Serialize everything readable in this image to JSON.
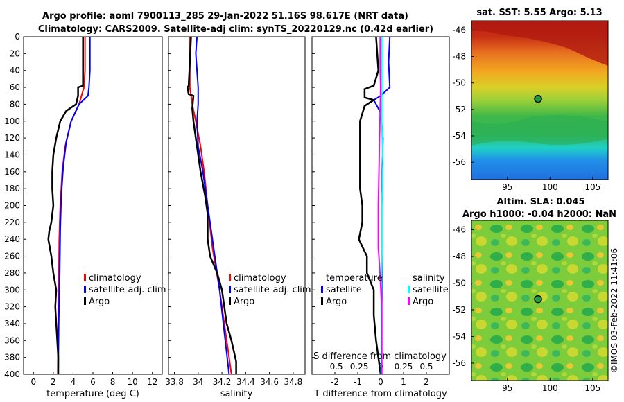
{
  "header": {
    "title_line1": "Argo profile: aoml 7900113_285 29-Jan-2022 51.16S 98.617E (NRT data)",
    "title_line2": "Climatology: CARS2009. Satellite-adj clim: synTS_20220129.nc (0.42d earlier)"
  },
  "colors": {
    "climatology": "#ff0000",
    "satellite_clim": "#0000ff",
    "argo": "#000000",
    "satellite_diff": "#00ffff",
    "argo_s_diff": "#ff00ff"
  },
  "chart_data": [
    {
      "type": "line",
      "xlabel": "temperature (deg C)",
      "ylabel": "",
      "xlim": [
        -1,
        13
      ],
      "ylim": [
        400,
        0
      ],
      "xticks": [
        "0",
        "2",
        "4",
        "6",
        "8",
        "10",
        "12"
      ],
      "yticks": [
        "0",
        "20",
        "40",
        "60",
        "80",
        "100",
        "120",
        "140",
        "160",
        "180",
        "200",
        "220",
        "240",
        "260",
        "280",
        "300",
        "320",
        "340",
        "360",
        "380",
        "400"
      ],
      "legend": [
        "climatology",
        "satellite-adj. clim",
        "Argo"
      ],
      "series": [
        {
          "name": "climatology",
          "color": "#ff0000",
          "points": [
            [
              5.2,
              0
            ],
            [
              5.2,
              40
            ],
            [
              5.1,
              60
            ],
            [
              4.6,
              80
            ],
            [
              3.8,
              100
            ],
            [
              3.2,
              130
            ],
            [
              2.9,
              160
            ],
            [
              2.7,
              200
            ],
            [
              2.6,
              240
            ],
            [
              2.55,
              300
            ],
            [
              2.5,
              350
            ],
            [
              2.45,
              400
            ]
          ]
        },
        {
          "name": "satellite-adj. clim",
          "color": "#0000ff",
          "points": [
            [
              5.7,
              0
            ],
            [
              5.7,
              40
            ],
            [
              5.6,
              60
            ],
            [
              5.5,
              70
            ],
            [
              4.6,
              80
            ],
            [
              3.8,
              100
            ],
            [
              3.3,
              125
            ],
            [
              3.0,
              155
            ],
            [
              2.8,
              190
            ],
            [
              2.7,
              230
            ],
            [
              2.65,
              280
            ],
            [
              2.55,
              340
            ],
            [
              2.5,
              400
            ]
          ]
        },
        {
          "name": "Argo",
          "color": "#000000",
          "points": [
            [
              5.0,
              0
            ],
            [
              5.0,
              30
            ],
            [
              5.0,
              58
            ],
            [
              4.5,
              60
            ],
            [
              4.5,
              70
            ],
            [
              4.3,
              80
            ],
            [
              3.3,
              88
            ],
            [
              2.7,
              100
            ],
            [
              2.3,
              120
            ],
            [
              2.0,
              140
            ],
            [
              1.9,
              160
            ],
            [
              1.9,
              180
            ],
            [
              2.0,
              200
            ],
            [
              1.8,
              220
            ],
            [
              1.6,
              230
            ],
            [
              1.5,
              240
            ],
            [
              1.8,
              260
            ],
            [
              2.0,
              280
            ],
            [
              2.3,
              300
            ],
            [
              2.2,
              320
            ],
            [
              2.3,
              340
            ],
            [
              2.4,
              360
            ],
            [
              2.5,
              380
            ],
            [
              2.5,
              400
            ]
          ]
        }
      ]
    },
    {
      "type": "line",
      "xlabel": "salinity",
      "xlim": [
        33.75,
        34.9
      ],
      "ylim": [
        400,
        0
      ],
      "xticks": [
        "33.8",
        "34",
        "34.2",
        "34.4",
        "34.6",
        "34.8"
      ],
      "legend": [
        "climatology",
        "satellite-adj. clim",
        "Argo"
      ],
      "series": [
        {
          "name": "climatology",
          "color": "#ff0000",
          "points": [
            [
              33.93,
              0
            ],
            [
              33.93,
              40
            ],
            [
              33.93,
              60
            ],
            [
              33.95,
              80
            ],
            [
              33.98,
              100
            ],
            [
              34.02,
              130
            ],
            [
              34.05,
              160
            ],
            [
              34.08,
              200
            ],
            [
              34.12,
              250
            ],
            [
              34.18,
              300
            ],
            [
              34.23,
              350
            ],
            [
              34.28,
              400
            ]
          ]
        },
        {
          "name": "satellite-adj. clim",
          "color": "#0000ff",
          "points": [
            [
              33.99,
              0
            ],
            [
              33.98,
              20
            ],
            [
              33.99,
              40
            ],
            [
              34.0,
              60
            ],
            [
              34.0,
              80
            ],
            [
              33.99,
              100
            ],
            [
              34.0,
              130
            ],
            [
              34.04,
              160
            ],
            [
              34.08,
              200
            ],
            [
              34.13,
              250
            ],
            [
              34.18,
              300
            ],
            [
              34.22,
              350
            ],
            [
              34.26,
              400
            ]
          ]
        },
        {
          "name": "Argo",
          "color": "#000000",
          "points": [
            [
              33.94,
              0
            ],
            [
              33.93,
              30
            ],
            [
              33.92,
              58
            ],
            [
              33.91,
              60
            ],
            [
              33.92,
              68
            ],
            [
              33.96,
              70
            ],
            [
              33.95,
              85
            ],
            [
              33.96,
              100
            ],
            [
              33.99,
              130
            ],
            [
              34.02,
              160
            ],
            [
              34.06,
              190
            ],
            [
              34.08,
              210
            ],
            [
              34.08,
              240
            ],
            [
              34.1,
              260
            ],
            [
              34.16,
              280
            ],
            [
              34.2,
              300
            ],
            [
              34.22,
              320
            ],
            [
              34.24,
              340
            ],
            [
              34.28,
              360
            ],
            [
              34.32,
              385
            ],
            [
              34.32,
              400
            ]
          ]
        }
      ]
    },
    {
      "type": "line",
      "xlabel": "T difference from climatology",
      "top_label": "S difference from climatology",
      "xlim": [
        -3,
        3
      ],
      "ylim": [
        400,
        0
      ],
      "xticks": [
        "-2",
        "-1",
        "0",
        "1",
        "2"
      ],
      "top_ticks": [
        "-0.5",
        "-0.25",
        "0",
        "0.25",
        "0.5"
      ],
      "legend_temperature_header": "temperature",
      "legend_salinity_header": "salinity",
      "legend_temperature": [
        "satellite",
        "Argo"
      ],
      "legend_salinity": [
        "satellite",
        "Argo"
      ],
      "series": [
        {
          "name": "T satellite",
          "color": "#0000ff",
          "points": [
            [
              0.4,
              0
            ],
            [
              0.35,
              30
            ],
            [
              0.4,
              60
            ],
            [
              0.0,
              70
            ],
            [
              -0.3,
              75
            ],
            [
              0.0,
              90
            ],
            [
              0.1,
              120
            ],
            [
              0.05,
              200
            ],
            [
              0.05,
              300
            ],
            [
              0.05,
              400
            ]
          ]
        },
        {
          "name": "T Argo",
          "color": "#000000",
          "points": [
            [
              -0.2,
              0
            ],
            [
              -0.1,
              40
            ],
            [
              -0.3,
              58
            ],
            [
              -0.7,
              62
            ],
            [
              -0.7,
              72
            ],
            [
              -0.3,
              75
            ],
            [
              -0.7,
              82
            ],
            [
              -0.9,
              100
            ],
            [
              -0.9,
              130
            ],
            [
              -0.9,
              160
            ],
            [
              -0.9,
              180
            ],
            [
              -0.8,
              200
            ],
            [
              -0.8,
              220
            ],
            [
              -0.95,
              240
            ],
            [
              -0.6,
              260
            ],
            [
              -0.6,
              280
            ],
            [
              -0.3,
              300
            ],
            [
              -0.3,
              330
            ],
            [
              -0.2,
              360
            ],
            [
              0.0,
              400
            ]
          ]
        },
        {
          "name": "S satellite",
          "color": "#00ffff",
          "points": [
            [
              0.05,
              0
            ],
            [
              0.05,
              100
            ],
            [
              0.1,
              150
            ],
            [
              0.05,
              200
            ],
            [
              0.05,
              250
            ],
            [
              0.02,
              300
            ],
            [
              0.03,
              350
            ],
            [
              0.02,
              400
            ]
          ]
        },
        {
          "name": "S Argo",
          "color": "#ff00ff",
          "points": [
            [
              -0.02,
              0
            ],
            [
              -0.02,
              40
            ],
            [
              0.0,
              60
            ],
            [
              -0.05,
              120
            ],
            [
              -0.1,
              200
            ],
            [
              -0.1,
              250
            ],
            [
              -0.03,
              280
            ],
            [
              0.05,
              320
            ],
            [
              0.05,
              360
            ],
            [
              0.05,
              400
            ]
          ]
        }
      ]
    }
  ],
  "maps": {
    "sst": {
      "title": "sat. SST: 5.55 Argo: 5.13",
      "xticks": [
        "95",
        "100",
        "105"
      ],
      "yticks": [
        "-46",
        "-48",
        "-50",
        "-52",
        "-54",
        "-56"
      ],
      "marker": {
        "lon": 98.6,
        "lat": -51.2
      }
    },
    "sla": {
      "title1": "Altim. SLA: 0.045",
      "title2": "Argo h1000: -0.04 h2000: NaN",
      "xticks": [
        "95",
        "100",
        "105"
      ],
      "yticks": [
        "-46",
        "-48",
        "-50",
        "-52",
        "-54",
        "-56"
      ],
      "marker": {
        "lon": 98.6,
        "lat": -51.2
      }
    }
  },
  "footer": {
    "timestamp": "©IMOS 03-Feb-2022 11:41:06"
  }
}
